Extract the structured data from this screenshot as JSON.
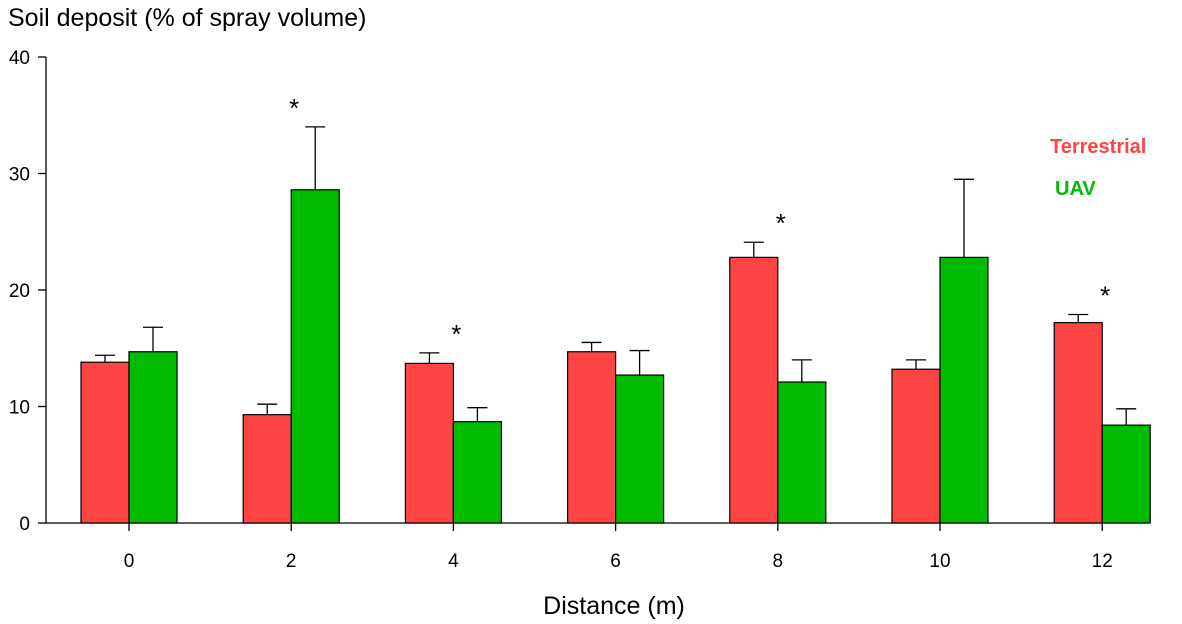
{
  "chart_data": {
    "type": "bar",
    "title": "Soil deposit (% of spray volume)",
    "xlabel": "Distance (m)",
    "ylabel": "",
    "categories": [
      "0",
      "2",
      "4",
      "6",
      "8",
      "10",
      "12"
    ],
    "ylim": [
      0,
      40
    ],
    "yticks": [
      "0",
      "10",
      "20",
      "30",
      "40"
    ],
    "grid": false,
    "legend_position": "right",
    "series": [
      {
        "name": "Terrestrial",
        "color": "#ff4444",
        "values": [
          13.8,
          9.3,
          13.7,
          14.7,
          22.8,
          13.2,
          17.2
        ],
        "errors": [
          0.6,
          0.9,
          0.9,
          0.8,
          1.3,
          0.8,
          0.7
        ]
      },
      {
        "name": "UAV",
        "color": "#00bb00",
        "values": [
          14.7,
          28.6,
          8.7,
          12.7,
          12.1,
          22.8,
          8.4
        ],
        "errors": [
          2.1,
          5.4,
          1.2,
          2.1,
          1.9,
          6.7,
          1.4
        ]
      }
    ],
    "significance_label": "*",
    "significant_categories": [
      "2",
      "4",
      "8",
      "12"
    ]
  }
}
